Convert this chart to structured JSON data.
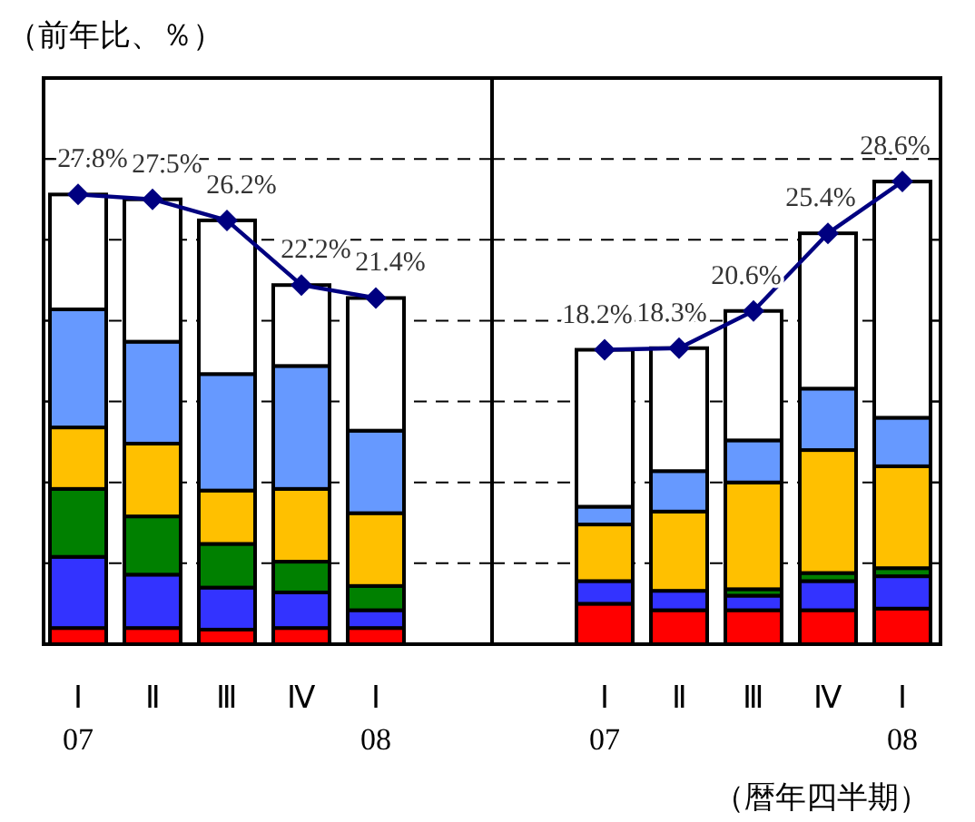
{
  "chart_data": [
    {
      "type": "bar",
      "stacked": true,
      "ylabel": "（前年比、％）",
      "categories": [
        "Ⅰ\n07",
        "Ⅱ",
        "Ⅲ",
        "Ⅳ",
        "Ⅰ\n08"
      ],
      "ylim": [
        0,
        35
      ],
      "yticks": [
        {
          "value": 0,
          "label": null
        },
        {
          "value": 5,
          "label": null
        },
        {
          "value": 10,
          "label": null
        },
        {
          "value": 15,
          "label": null
        },
        {
          "value": 20,
          "label": null
        },
        {
          "value": 25,
          "label": null
        },
        {
          "value": 30,
          "label": null
        },
        {
          "value": 35,
          "label": null
        }
      ],
      "grid": "y",
      "tick_labels": "x",
      "series": [
        {
          "color": "#ff0000",
          "values": [
            1.0,
            1.0,
            0.9,
            1.0,
            1.0
          ]
        },
        {
          "color": "#3333ff",
          "values": [
            4.4,
            3.3,
            2.6,
            2.2,
            1.1
          ]
        },
        {
          "color": "#008000",
          "values": [
            4.2,
            3.6,
            2.7,
            1.9,
            1.5
          ]
        },
        {
          "color": "#ffc000",
          "values": [
            3.8,
            4.5,
            3.3,
            4.5,
            4.5
          ]
        },
        {
          "color": "#6699ff",
          "values": [
            7.3,
            6.3,
            7.2,
            7.6,
            5.1
          ]
        },
        {
          "color": "#ffffff",
          "values": [
            7.1,
            8.8,
            9.5,
            5.0,
            8.2
          ]
        },
        {
          "type": "line",
          "color": "#000080",
          "marker": "diamond",
          "values": [
            27.8,
            27.5,
            26.2,
            22.2,
            21.4
          ],
          "value_labels": [
            "27.8%",
            "27.5%",
            "26.2%",
            "22.2%",
            "21.4%"
          ]
        }
      ]
    },
    {
      "type": "bar",
      "stacked": true,
      "xlabel": "（暦年四半期）",
      "categories": [
        "Ⅰ\n07",
        "Ⅱ",
        "Ⅲ",
        "Ⅳ",
        "Ⅰ\n08"
      ],
      "ylim": [
        0,
        35
      ],
      "yticks": [
        {
          "value": 0,
          "label": null
        },
        {
          "value": 5,
          "label": null
        },
        {
          "value": 10,
          "label": null
        },
        {
          "value": 15,
          "label": null
        },
        {
          "value": 20,
          "label": null
        },
        {
          "value": 25,
          "label": null
        },
        {
          "value": 30,
          "label": null
        },
        {
          "value": 35,
          "label": null
        }
      ],
      "grid": "y",
      "tick_labels": "x",
      "series": [
        {
          "color": "#ff0000",
          "values": [
            2.5,
            2.1,
            2.1,
            2.1,
            2.2
          ]
        },
        {
          "color": "#3333ff",
          "values": [
            1.4,
            1.2,
            0.9,
            1.8,
            2.0
          ]
        },
        {
          "color": "#008000",
          "values": [
            0,
            0,
            0.4,
            0.5,
            0.5
          ]
        },
        {
          "color": "#ffc000",
          "values": [
            3.5,
            4.9,
            6.6,
            7.6,
            6.3
          ]
        },
        {
          "color": "#6699ff",
          "values": [
            1.1,
            2.5,
            2.6,
            3.8,
            3.0
          ]
        },
        {
          "color": "#ffffff",
          "values": [
            9.7,
            7.6,
            8.0,
            9.6,
            14.6
          ]
        },
        {
          "type": "line",
          "color": "#000080",
          "marker": "diamond",
          "values": [
            18.2,
            18.3,
            20.6,
            25.4,
            28.6
          ],
          "value_labels": [
            "18.2%",
            "18.3%",
            "20.6%",
            "25.4%",
            "28.6%"
          ]
        }
      ]
    }
  ]
}
